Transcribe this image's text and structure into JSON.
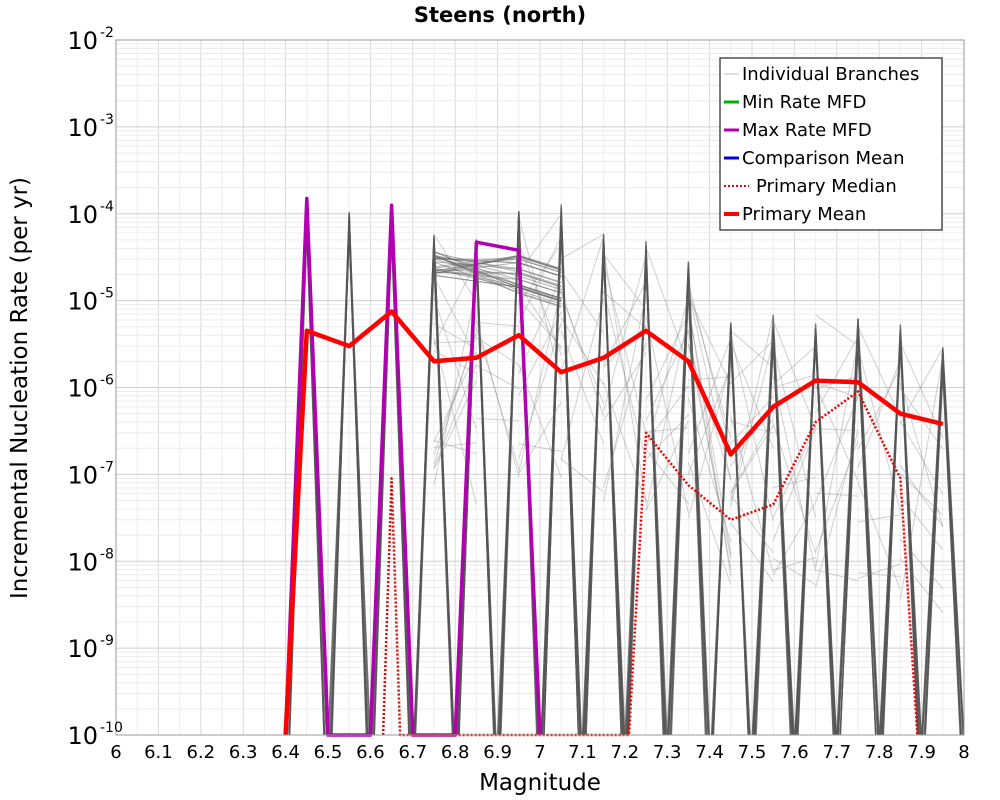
{
  "chart_data": {
    "type": "line",
    "title": "Steens (north)",
    "xlabel": "Magnitude",
    "ylabel": "Incremental Nucleation Rate (per yr)",
    "xlim": [
      6,
      8
    ],
    "ylim": [
      1e-10,
      0.01
    ],
    "yscale": "log",
    "grid": true,
    "legend_position": "top-right",
    "x_ticks": [
      "6",
      "6.1",
      "6.2",
      "6.3",
      "6.4",
      "6.5",
      "6.6",
      "6.7",
      "6.8",
      "6.9",
      "7",
      "7.1",
      "7.2",
      "7.3",
      "7.4",
      "7.5",
      "7.6",
      "7.7",
      "7.8",
      "7.9",
      "8"
    ],
    "y_ticks": [
      {
        "base": "10",
        "exp": "-10",
        "value": 1e-10
      },
      {
        "base": "10",
        "exp": "-9",
        "value": 1e-09
      },
      {
        "base": "10",
        "exp": "-8",
        "value": 1e-08
      },
      {
        "base": "10",
        "exp": "-7",
        "value": 1e-07
      },
      {
        "base": "10",
        "exp": "-6",
        "value": 1e-06
      },
      {
        "base": "10",
        "exp": "-5",
        "value": 1e-05
      },
      {
        "base": "10",
        "exp": "-4",
        "value": 0.0001
      },
      {
        "base": "10",
        "exp": "-3",
        "value": 0.001
      },
      {
        "base": "10",
        "exp": "-2",
        "value": 0.01
      }
    ],
    "legend": [
      {
        "label": "Individual Branches",
        "color": "#bbbbbb",
        "dash": "solid",
        "width": 1
      },
      {
        "label": "Min Rate MFD",
        "color": "#00b000",
        "dash": "solid",
        "width": 3
      },
      {
        "label": "Max Rate MFD",
        "color": "#b000b0",
        "dash": "solid",
        "width": 3
      },
      {
        "label": "Comparison Mean",
        "color": "#0000dd",
        "dash": "solid",
        "width": 3
      },
      {
        "label": "Primary Median",
        "color": "#ee0000",
        "dash": "dotted",
        "width": 2
      },
      {
        "label": "Primary Mean",
        "color": "#ff0000",
        "dash": "solid",
        "width": 4
      }
    ],
    "branch_spikes": [
      {
        "x": 6.45,
        "peak": 0.00014
      },
      {
        "x": 6.55,
        "peak": 0.00013
      },
      {
        "x": 6.65,
        "peak": 0.00012
      },
      {
        "x": 6.75,
        "peak": 6e-05
      },
      {
        "x": 6.85,
        "peak": 5.5e-05
      },
      {
        "x": 6.95,
        "peak": 0.000135
      },
      {
        "x": 7.05,
        "peak": 0.00013
      },
      {
        "x": 7.15,
        "peak": 6e-05
      },
      {
        "x": 7.25,
        "peak": 5.5e-05
      },
      {
        "x": 7.35,
        "peak": 3e-05
      },
      {
        "x": 7.45,
        "peak": 6e-06
      },
      {
        "x": 7.55,
        "peak": 7e-06
      },
      {
        "x": 7.65,
        "peak": 7e-06
      },
      {
        "x": 7.75,
        "peak": 6.5e-06
      },
      {
        "x": 7.85,
        "peak": 5.5e-06
      },
      {
        "x": 7.95,
        "peak": 3e-06
      }
    ],
    "series": [
      {
        "name": "Max Rate MFD",
        "color": "#b000b0",
        "width": 3.5,
        "dash": "solid",
        "points": [
          [
            6.4,
            1e-10
          ],
          [
            6.45,
            0.00015
          ],
          [
            6.5,
            1e-10
          ],
          [
            6.6,
            1e-10
          ],
          [
            6.65,
            0.000125
          ],
          [
            6.7,
            1e-10
          ],
          [
            6.8,
            1e-10
          ],
          [
            6.85,
            4.7e-05
          ],
          [
            6.95,
            3.8e-05
          ],
          [
            7.0,
            1e-10
          ]
        ]
      },
      {
        "name": "Primary Median",
        "color": "#ee0000",
        "width": 2.5,
        "dash": "dotted",
        "points": [
          [
            6.63,
            1e-10
          ],
          [
            6.65,
            9e-08
          ],
          [
            6.67,
            1e-10
          ],
          [
            7.21,
            1e-10
          ],
          [
            7.25,
            3e-07
          ],
          [
            7.35,
            7.5e-08
          ],
          [
            7.45,
            3e-08
          ],
          [
            7.55,
            4.5e-08
          ],
          [
            7.65,
            4e-07
          ],
          [
            7.75,
            9e-07
          ],
          [
            7.85,
            9e-08
          ],
          [
            7.89,
            1e-10
          ]
        ]
      },
      {
        "name": "Primary Mean",
        "color": "#ff0000",
        "width": 4.5,
        "dash": "solid",
        "points": [
          [
            6.4,
            1e-10
          ],
          [
            6.45,
            4.5e-06
          ],
          [
            6.55,
            3e-06
          ],
          [
            6.65,
            7.5e-06
          ],
          [
            6.75,
            2e-06
          ],
          [
            6.85,
            2.2e-06
          ],
          [
            6.95,
            4e-06
          ],
          [
            7.05,
            1.5e-06
          ],
          [
            7.15,
            2.2e-06
          ],
          [
            7.25,
            4.5e-06
          ],
          [
            7.35,
            2e-06
          ],
          [
            7.45,
            1.7e-07
          ],
          [
            7.55,
            6e-07
          ],
          [
            7.65,
            1.2e-06
          ],
          [
            7.75,
            1.15e-06
          ],
          [
            7.85,
            5e-07
          ],
          [
            7.95,
            3.8e-07
          ]
        ]
      }
    ]
  }
}
